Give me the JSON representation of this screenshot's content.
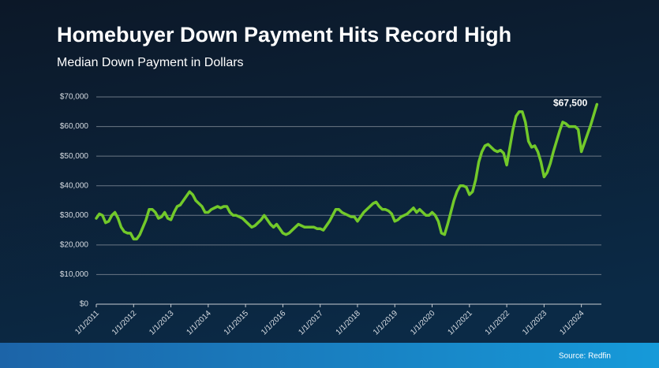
{
  "chart_data": {
    "type": "line",
    "title": "Homebuyer Down Payment Hits Record High",
    "subtitle": "Median Down Payment in Dollars",
    "source": "Source: Redfin",
    "color": "#72c92a",
    "categories": [
      "1/1/2011",
      null,
      null,
      null,
      null,
      null,
      null,
      null,
      null,
      null,
      null,
      null,
      "1/1/2012",
      null,
      null,
      null,
      null,
      null,
      null,
      null,
      null,
      null,
      null,
      null,
      "1/1/2013",
      null,
      null,
      null,
      null,
      null,
      null,
      null,
      null,
      null,
      null,
      null,
      "1/1/2014",
      null,
      null,
      null,
      null,
      null,
      null,
      null,
      null,
      null,
      null,
      null,
      "1/1/2015",
      null,
      null,
      null,
      null,
      null,
      null,
      null,
      null,
      null,
      null,
      null,
      "1/1/2016",
      null,
      null,
      null,
      null,
      null,
      null,
      null,
      null,
      null,
      null,
      null,
      "1/1/2017",
      null,
      null,
      null,
      null,
      null,
      null,
      null,
      null,
      null,
      null,
      null,
      "1/1/2018",
      null,
      null,
      null,
      null,
      null,
      null,
      null,
      null,
      null,
      null,
      null,
      "1/1/2019",
      null,
      null,
      null,
      null,
      null,
      null,
      null,
      null,
      null,
      null,
      null,
      "1/1/2020",
      null,
      null,
      null,
      null,
      null,
      null,
      null,
      null,
      null,
      null,
      null,
      "1/1/2021",
      null,
      null,
      null,
      null,
      null,
      null,
      null,
      null,
      null,
      null,
      null,
      "1/1/2022",
      null,
      null,
      null,
      null,
      null,
      null,
      null,
      null,
      null,
      null,
      null,
      "1/1/2023",
      null,
      null,
      null,
      null,
      null,
      null,
      null,
      null,
      null,
      null,
      null,
      "1/1/2024",
      null,
      null,
      null,
      null,
      null
    ],
    "values": [
      29000,
      30500,
      30000,
      27500,
      28000,
      30000,
      31000,
      29000,
      26000,
      24500,
      24000,
      24000,
      22000,
      22000,
      23500,
      26000,
      28500,
      32000,
      32000,
      31000,
      29000,
      29500,
      31000,
      29000,
      28500,
      31000,
      33000,
      33500,
      35000,
      36500,
      38000,
      37000,
      35000,
      34000,
      33000,
      31000,
      31000,
      32000,
      32500,
      33000,
      32500,
      33000,
      33000,
      31000,
      30000,
      30000,
      29500,
      29000,
      28000,
      27000,
      26000,
      26500,
      27500,
      28500,
      30000,
      28500,
      27000,
      26000,
      27000,
      25500,
      24000,
      23500,
      24000,
      25000,
      26000,
      27000,
      26500,
      26000,
      26000,
      26000,
      26000,
      25500,
      25500,
      25000,
      26500,
      28000,
      30000,
      32000,
      32000,
      31000,
      30500,
      30000,
      29500,
      29500,
      28000,
      29500,
      31000,
      32000,
      33000,
      34000,
      34500,
      33000,
      32000,
      32000,
      31500,
      30500,
      28000,
      28500,
      29500,
      30000,
      30500,
      31500,
      32500,
      31000,
      32000,
      31000,
      30000,
      30000,
      31000,
      30000,
      28000,
      24000,
      23500,
      27000,
      31000,
      35000,
      38000,
      40000,
      40000,
      39500,
      37000,
      38000,
      42000,
      48000,
      51500,
      53500,
      54000,
      53000,
      52000,
      51500,
      52000,
      51000,
      47000,
      53000,
      59000,
      63500,
      65000,
      65000,
      61500,
      55000,
      53000,
      53500,
      51500,
      48000,
      43000,
      44500,
      47500,
      51500,
      55000,
      58500,
      61500,
      61000,
      60000,
      60000,
      60000,
      59000,
      51500,
      54500,
      57500,
      60500,
      64000,
      67500
    ],
    "value_labels": [
      null,
      null,
      null,
      null,
      null,
      null,
      null,
      null,
      null,
      null,
      null,
      null,
      null,
      null,
      null,
      null,
      null,
      null,
      null,
      null,
      null,
      null,
      null,
      null,
      null,
      null,
      null,
      null,
      null,
      null,
      null,
      null,
      null,
      null,
      null,
      null,
      null,
      null,
      null,
      null,
      null,
      null,
      null,
      null,
      null,
      null,
      null,
      null,
      null,
      null,
      null,
      null,
      null,
      null,
      null,
      null,
      null,
      null,
      null,
      null,
      null,
      null,
      null,
      null,
      null,
      null,
      null,
      null,
      null,
      null,
      null,
      null,
      null,
      null,
      null,
      null,
      null,
      null,
      null,
      null,
      null,
      null,
      null,
      null,
      null,
      null,
      null,
      null,
      null,
      null,
      null,
      null,
      null,
      null,
      null,
      null,
      null,
      null,
      null,
      null,
      null,
      null,
      null,
      null,
      null,
      null,
      null,
      null,
      null,
      null,
      null,
      null,
      null,
      null,
      null,
      null,
      null,
      null,
      null,
      null,
      null,
      null,
      null,
      null,
      null,
      null,
      null,
      null,
      null,
      null,
      null,
      null,
      null,
      null,
      null,
      null,
      null,
      null,
      null,
      null,
      null,
      null,
      null,
      null,
      null,
      null,
      null,
      null,
      null,
      null,
      null,
      null,
      null,
      null,
      null,
      null,
      null,
      null,
      null,
      null,
      null,
      "$67,500"
    ],
    "ylim": [
      0,
      70000
    ],
    "yticks": [
      {
        "value": 0,
        "label": "$0"
      },
      {
        "value": 10000,
        "label": "$10,000"
      },
      {
        "value": 20000,
        "label": "$20,000"
      },
      {
        "value": 30000,
        "label": "$30,000"
      },
      {
        "value": 40000,
        "label": "$40,000"
      },
      {
        "value": 50000,
        "label": "$50,000"
      },
      {
        "value": 60000,
        "label": "$60,000"
      },
      {
        "value": 70000,
        "label": "$70,000"
      }
    ],
    "grid": true
  }
}
